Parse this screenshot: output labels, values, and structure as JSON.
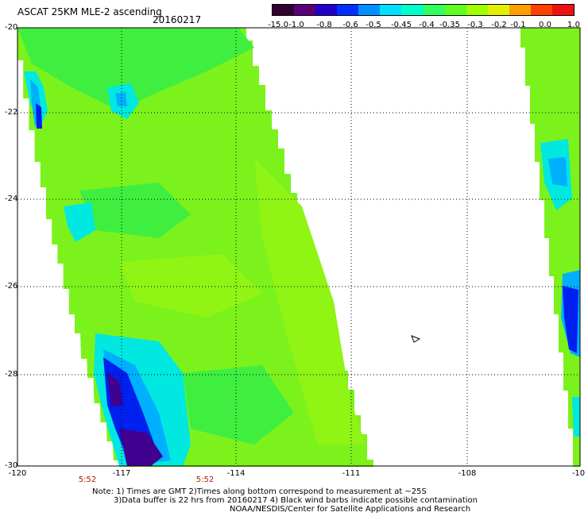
{
  "header": {
    "title": "ASCAT 25KM MLE-2 ascending",
    "date": "20160217"
  },
  "colorbar": {
    "tick_labels": [
      "-15.0",
      "-1.0",
      "-0.8",
      "-0.6",
      "-0.5",
      "-0.45",
      "-0.4",
      "-0.35",
      "-0.3",
      "-0.2",
      "-0.1",
      "0.0",
      "1.0"
    ],
    "colors": [
      "#300030",
      "#5a0078",
      "#2000c8",
      "#0030ff",
      "#0090ff",
      "#00e0ff",
      "#00ffc8",
      "#30ff60",
      "#60ff20",
      "#a0ff00",
      "#e0f000",
      "#ffa000",
      "#ff4000",
      "#f01010"
    ]
  },
  "map": {
    "lat_labels": [
      "-20",
      "-22",
      "-24",
      "-26",
      "-28",
      "-30"
    ],
    "lon_labels": [
      "-120",
      "-117",
      "-114",
      "-111",
      "-108",
      "-10"
    ],
    "time_labels": [
      "5:52",
      "5:52"
    ],
    "colors": {
      "swath_main": "#7cf21c",
      "swath_light": "#90f414",
      "swath_green": "#40ee40",
      "cyan": "#00e8e0",
      "lightblue": "#00b0ff",
      "blue": "#0020f0",
      "purple": "#400090",
      "grid": "#000000"
    }
  },
  "notes": {
    "line1": "Note: 1) Times are GMT 2)Times along bottom correspond to measurement at ~25S",
    "line2": "3)Data buffer is 22 hrs from 20160217 4) Black wind barbs indicate possible contamination",
    "line3": "NOAA/NESDIS/Center for Satellite Applications and Research"
  }
}
